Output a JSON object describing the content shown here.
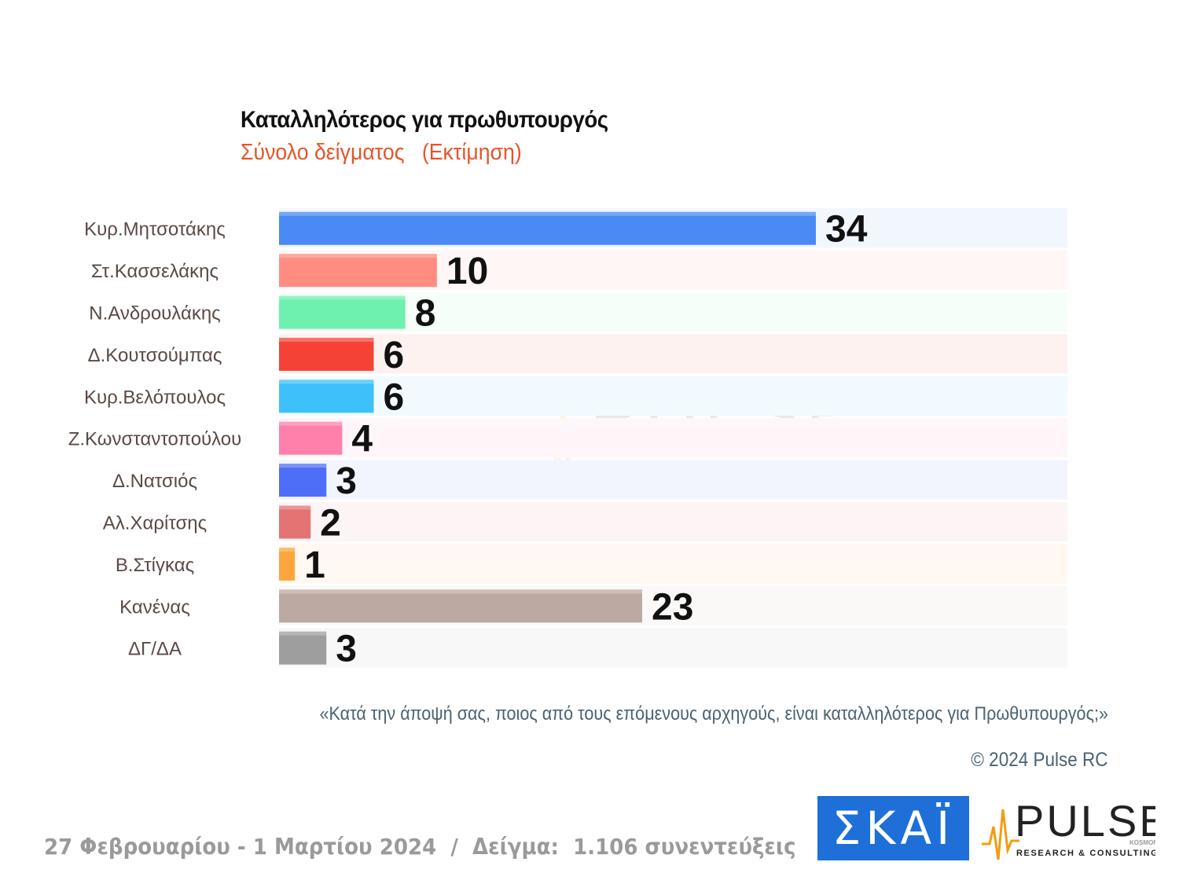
{
  "header": {
    "title": "Καταλληλότερος για πρωθυπουργός",
    "subtitle": "Σύνολο δείγματος   (Εκτίμηση)"
  },
  "chart_data": {
    "type": "bar",
    "orientation": "horizontal",
    "categories": [
      "Κυρ.Μητσοτάκης",
      "Στ.Κασσελάκης",
      "Ν.Ανδρουλάκης",
      "Δ.Κουτσούμπας",
      "Κυρ.Βελόπουλος",
      "Ζ.Κωνσταντοπούλου",
      "Δ.Νατσιός",
      "Αλ.Χαρίτσης",
      "Β.Στίγκας",
      "Κανένας",
      "ΔΓ/ΔΑ"
    ],
    "values": [
      34,
      10,
      8,
      6,
      6,
      4,
      3,
      2,
      1,
      23,
      3
    ],
    "colors": [
      "#4a8af5",
      "#ff8c80",
      "#6ef0ae",
      "#f44336",
      "#3ec1fb",
      "#ff80ab",
      "#4f6ef7",
      "#e57373",
      "#ffa53d",
      "#bca9a2",
      "#9e9e9e"
    ],
    "xlim": [
      0,
      50
    ],
    "grid": false,
    "legend": "none"
  },
  "question": "«Κατά την άποψή σας, ποιος από τους επόμενους αρχηγούς, είναι καταλληλότερος για Πρωθυπουργός;»",
  "copyright": "© 2024 Pulse RC",
  "footer": "27 Φεβρουαρίου - 1 Μαρτίου 2024  /  Δείγμα:  1.106 συνεντεύξεις",
  "logos": {
    "skai": "ΣΚΑΪ",
    "pulse": "PULSE",
    "pulse_tagline": "RESEARCH & CONSULTING",
    "pulse_small": "KOSMON",
    "brand_blue": "#1f6fd8",
    "brand_orange": "#f39c12"
  }
}
